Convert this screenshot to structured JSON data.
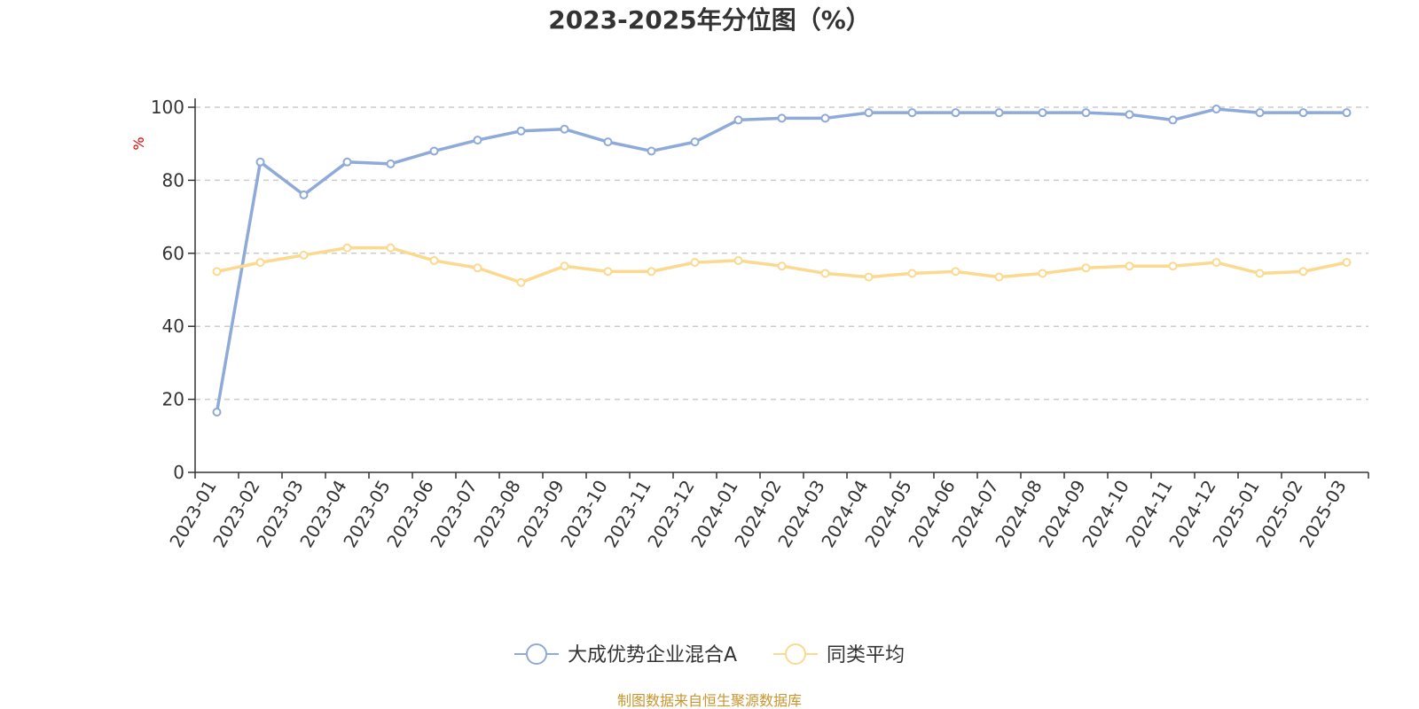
{
  "chart_data": {
    "type": "line",
    "title": "2023-2025年分位图（%）",
    "ylabel": "%",
    "xlabel": "",
    "ylim": [
      0,
      100
    ],
    "yticks": [
      0,
      20,
      40,
      60,
      80,
      100
    ],
    "grid": true,
    "legend_position": "bottom-center",
    "categories": [
      "2023-01",
      "2023-02",
      "2023-03",
      "2023-04",
      "2023-05",
      "2023-06",
      "2023-07",
      "2023-08",
      "2023-09",
      "2023-10",
      "2023-11",
      "2023-12",
      "2024-01",
      "2024-02",
      "2024-03",
      "2024-04",
      "2024-05",
      "2024-06",
      "2024-07",
      "2024-08",
      "2024-09",
      "2024-10",
      "2024-11",
      "2024-12",
      "2025-01",
      "2025-02",
      "2025-03"
    ],
    "series": [
      {
        "name": "大成优势企业混合A",
        "color": "#8eaad8",
        "values": [
          16.5,
          85,
          76,
          85,
          84.5,
          88,
          91,
          93.5,
          94,
          90.5,
          88,
          90.5,
          96.5,
          97,
          97,
          98.5,
          98.5,
          98.5,
          98.5,
          98.5,
          98.5,
          98,
          96.5,
          99.5,
          98.5,
          98.5,
          98.5
        ]
      },
      {
        "name": "同类平均",
        "color": "#fbd98f",
        "values": [
          55,
          57.5,
          59.5,
          61.5,
          61.5,
          58,
          56,
          52,
          56.5,
          55,
          55,
          57.5,
          58,
          56.5,
          54.5,
          53.5,
          54.5,
          55,
          53.5,
          54.5,
          56,
          56.5,
          56.5,
          57.5,
          54.5,
          55,
          57.5
        ]
      }
    ]
  },
  "source_text": "制图数据来自恒生聚源数据库"
}
